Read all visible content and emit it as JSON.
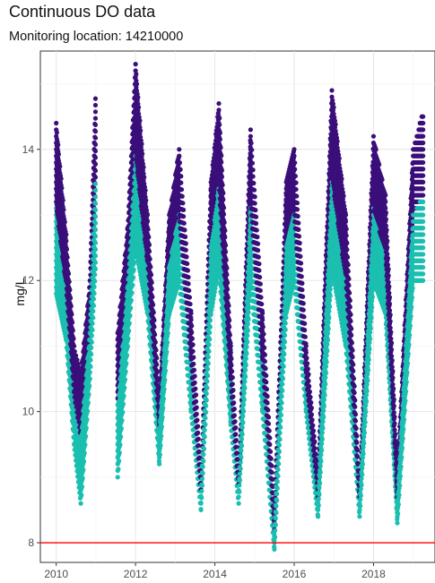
{
  "chart_data": {
    "type": "scatter",
    "title": "Continuous DO data",
    "subtitle": "Monitoring location: 14210000",
    "xlabel": "",
    "ylabel": "mg/L",
    "xlim": [
      2009.6,
      2019.55
    ],
    "ylim": [
      7.7,
      15.5
    ],
    "x_ticks": [
      2010,
      2012,
      2014,
      2016,
      2018
    ],
    "x_tick_labels": [
      "2010",
      "2012",
      "2014",
      "2016",
      "2018"
    ],
    "y_ticks": [
      8,
      10,
      12,
      14
    ],
    "y_tick_labels": [
      "8",
      "10",
      "12",
      "14"
    ],
    "grid": true,
    "legend": "none",
    "reference_line": {
      "y": 8,
      "color": "#ff0000"
    },
    "point_colors": {
      "max": "#3b0f7a",
      "min": "#1abfb0"
    },
    "seasonal_envelope": [
      {
        "year": 2010.0,
        "do_max": 14.4,
        "do_min": 11.8
      },
      {
        "year": 2010.25,
        "do_max": 12.7,
        "do_min": 11.1
      },
      {
        "year": 2010.45,
        "do_max": 11.0,
        "do_min": 9.5
      },
      {
        "year": 2010.62,
        "do_max": 10.6,
        "do_min": 8.6
      },
      {
        "year": 2010.85,
        "do_max": 12.0,
        "do_min": 10.5
      },
      {
        "year": 2011.0,
        "do_max": 15.0,
        "do_min": 12.3
      },
      {
        "year": 2011.55,
        "do_max": 11.2,
        "do_min": 9.0
      },
      {
        "year": 2011.8,
        "do_max": 12.8,
        "do_min": 11.0
      },
      {
        "year": 2012.0,
        "do_max": 15.3,
        "do_min": 12.5
      },
      {
        "year": 2012.3,
        "do_max": 13.0,
        "do_min": 11.5
      },
      {
        "year": 2012.6,
        "do_max": 10.2,
        "do_min": 9.2
      },
      {
        "year": 2012.85,
        "do_max": 13.0,
        "do_min": 11.5
      },
      {
        "year": 2013.1,
        "do_max": 14.0,
        "do_min": 12.0
      },
      {
        "year": 2013.4,
        "do_max": 11.5,
        "do_min": 10.0
      },
      {
        "year": 2013.65,
        "do_max": 9.0,
        "do_min": 8.5
      },
      {
        "year": 2013.9,
        "do_max": 13.5,
        "do_min": 11.5
      },
      {
        "year": 2014.1,
        "do_max": 14.7,
        "do_min": 12.2
      },
      {
        "year": 2014.4,
        "do_max": 11.0,
        "do_min": 9.8
      },
      {
        "year": 2014.6,
        "do_max": 9.0,
        "do_min": 8.6
      },
      {
        "year": 2014.9,
        "do_max": 14.3,
        "do_min": 12.0
      },
      {
        "year": 2015.2,
        "do_max": 11.5,
        "do_min": 10.0
      },
      {
        "year": 2015.5,
        "do_max": 8.5,
        "do_min": 7.9
      },
      {
        "year": 2015.8,
        "do_max": 13.5,
        "do_min": 11.5
      },
      {
        "year": 2016.0,
        "do_max": 14.0,
        "do_min": 12.0
      },
      {
        "year": 2016.3,
        "do_max": 11.0,
        "do_min": 10.0
      },
      {
        "year": 2016.6,
        "do_max": 9.0,
        "do_min": 8.4
      },
      {
        "year": 2016.95,
        "do_max": 14.9,
        "do_min": 12.2
      },
      {
        "year": 2017.3,
        "do_max": 13.0,
        "do_min": 11.0
      },
      {
        "year": 2017.65,
        "do_max": 8.8,
        "do_min": 8.4
      },
      {
        "year": 2018.0,
        "do_max": 14.2,
        "do_min": 12.0
      },
      {
        "year": 2018.3,
        "do_max": 13.3,
        "do_min": 11.5
      },
      {
        "year": 2018.6,
        "do_max": 9.0,
        "do_min": 8.3
      },
      {
        "year": 2019.0,
        "do_max": 14.0,
        "do_min": 12.0
      },
      {
        "year": 2019.25,
        "do_max": 14.6,
        "do_min": 12.0
      }
    ]
  }
}
